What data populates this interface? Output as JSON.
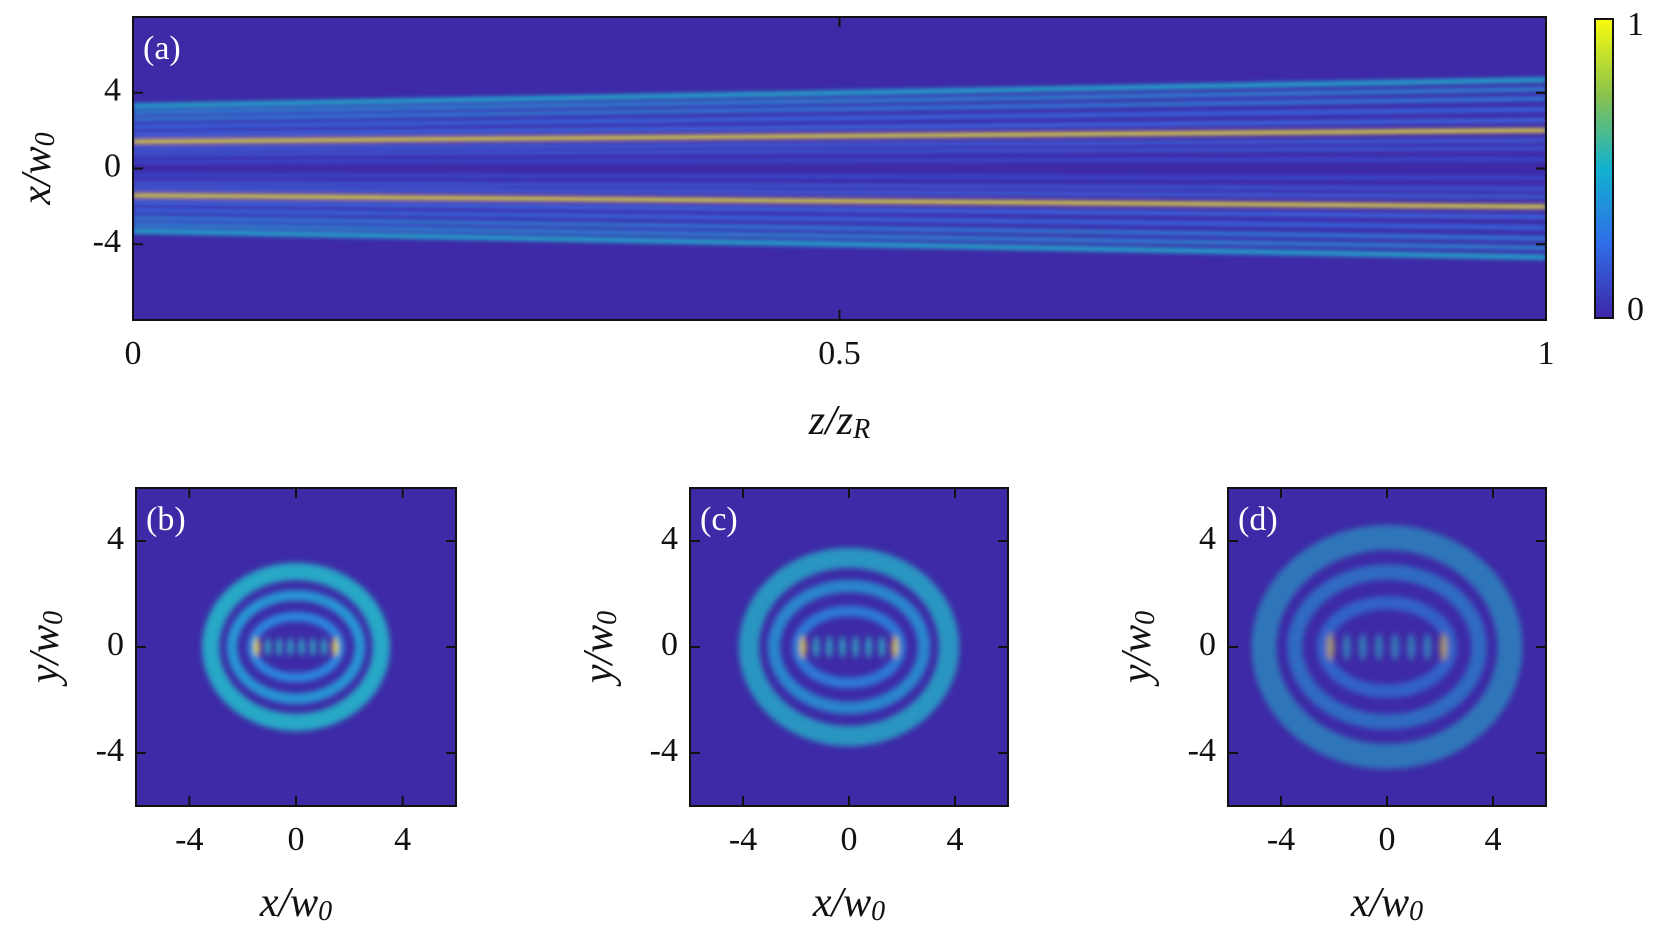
{
  "chart_data": [
    {
      "type": "heatmap",
      "panel": "(a)",
      "xlabel": "z/z",
      "xlabel_sub": "R",
      "ylabel": "x/w",
      "ylabel_sub": "0",
      "xlim": [
        0,
        1
      ],
      "xticks": [
        0,
        0.5,
        1
      ],
      "ylim": [
        -8,
        8
      ],
      "yticks": [
        -4,
        0,
        4
      ],
      "colorbar": {
        "lim": [
          0,
          1
        ],
        "ticks": [
          0,
          1
        ]
      }
    },
    {
      "type": "heatmap",
      "panel": "(b)",
      "xlabel": "x/w",
      "xlabel_sub": "0",
      "ylabel": "y/w",
      "ylabel_sub": "0",
      "xlim": [
        -6,
        6
      ],
      "xticks": [
        -4,
        0,
        4
      ],
      "ylim": [
        -6,
        6
      ],
      "yticks": [
        -4,
        0,
        4
      ]
    },
    {
      "type": "heatmap",
      "panel": "(c)",
      "xlabel": "x/w",
      "xlabel_sub": "0",
      "ylabel": "y/w",
      "ylabel_sub": "0",
      "xlim": [
        -6,
        6
      ],
      "xticks": [
        -4,
        0,
        4
      ],
      "ylim": [
        -6,
        6
      ],
      "yticks": [
        -4,
        0,
        4
      ]
    },
    {
      "type": "heatmap",
      "panel": "(d)",
      "xlabel": "x/w",
      "xlabel_sub": "0",
      "ylabel": "y/w",
      "ylabel_sub": "0",
      "xlim": [
        -6,
        6
      ],
      "xticks": [
        -4,
        0,
        4
      ],
      "ylim": [
        -6,
        6
      ],
      "yticks": [
        -4,
        0,
        4
      ]
    }
  ]
}
